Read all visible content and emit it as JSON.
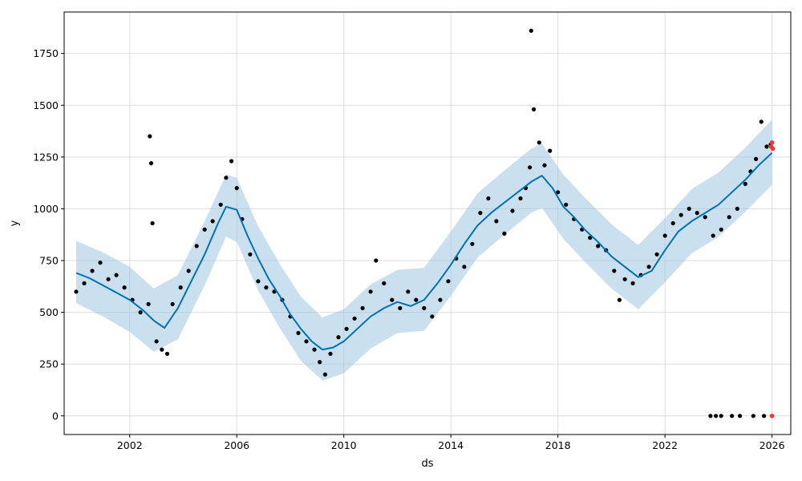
{
  "chart_data": {
    "type": "line",
    "title": "",
    "xlabel": "ds",
    "ylabel": "y",
    "xlim": [
      1999.55,
      2026.7
    ],
    "ylim": [
      -90,
      1950
    ],
    "x_ticks": [
      2002,
      2006,
      2010,
      2014,
      2018,
      2022,
      2026
    ],
    "y_ticks": [
      0,
      250,
      500,
      750,
      1000,
      1250,
      1500,
      1750
    ],
    "grid": true,
    "legend": "none",
    "colors": {
      "forecast": "#0072B2",
      "uncertainty": "#9ec6e2",
      "observed": "#000000",
      "recent": "#ff3333",
      "grid": "#dddddd"
    },
    "series": [
      {
        "role": "forecast",
        "x": [
          2000.0,
          2000.5,
          2001.0,
          2001.5,
          2002.0,
          2002.5,
          2002.9,
          2003.3,
          2003.8,
          2004.3,
          2004.8,
          2005.3,
          2005.6,
          2006.0,
          2006.4,
          2006.8,
          2007.2,
          2007.6,
          2008.0,
          2008.4,
          2008.8,
          2009.2,
          2009.6,
          2010.0,
          2010.5,
          2011.0,
          2011.5,
          2012.0,
          2012.5,
          2013.0,
          2013.5,
          2014.0,
          2014.5,
          2015.0,
          2015.5,
          2016.0,
          2016.5,
          2017.0,
          2017.4,
          2017.8,
          2018.2,
          2018.6,
          2019.0,
          2019.5,
          2020.0,
          2020.5,
          2021.0,
          2021.5,
          2022.0,
          2022.5,
          2023.0,
          2023.5,
          2024.0,
          2024.5,
          2025.0,
          2025.5,
          2026.0
        ],
        "y": [
          690,
          665,
          630,
          595,
          560,
          510,
          460,
          425,
          520,
          650,
          780,
          930,
          1010,
          995,
          870,
          760,
          660,
          580,
          490,
          420,
          360,
          320,
          330,
          360,
          420,
          480,
          520,
          550,
          530,
          560,
          640,
          730,
          830,
          920,
          980,
          1030,
          1080,
          1130,
          1160,
          1100,
          1010,
          960,
          900,
          840,
          770,
          720,
          670,
          700,
          800,
          890,
          940,
          980,
          1020,
          1080,
          1140,
          1210,
          1270
        ]
      },
      {
        "role": "uncertainty",
        "x": [
          2000.0,
          2001.0,
          2002.0,
          2002.9,
          2003.8,
          2004.8,
          2005.6,
          2006.0,
          2006.8,
          2007.6,
          2008.4,
          2009.2,
          2010.0,
          2011.0,
          2012.0,
          2013.0,
          2014.0,
          2015.0,
          2016.0,
          2017.0,
          2017.4,
          2018.2,
          2019.0,
          2020.0,
          2021.0,
          2022.0,
          2023.0,
          2024.0,
          2025.0,
          2026.0
        ],
        "upper": [
          845,
          790,
          720,
          615,
          680,
          940,
          1165,
          1150,
          915,
          735,
          575,
          475,
          515,
          635,
          705,
          715,
          890,
          1075,
          1185,
          1290,
          1315,
          1165,
          1055,
          925,
          825,
          955,
          1095,
          1175,
          1295,
          1430
        ],
        "lower": [
          545,
          480,
          405,
          310,
          370,
          630,
          865,
          840,
          605,
          425,
          265,
          170,
          205,
          325,
          400,
          410,
          580,
          765,
          875,
          980,
          1005,
          855,
          745,
          615,
          515,
          645,
          785,
          865,
          985,
          1115
        ]
      },
      {
        "role": "observed",
        "x": [
          2000.0,
          2000.3,
          2000.6,
          2000.9,
          2001.2,
          2001.5,
          2001.8,
          2002.1,
          2002.4,
          2002.7,
          2002.75,
          2002.8,
          2002.85,
          2003.0,
          2003.2,
          2003.4,
          2003.6,
          2003.9,
          2004.2,
          2004.5,
          2004.8,
          2005.1,
          2005.4,
          2005.6,
          2005.8,
          2006.0,
          2006.2,
          2006.5,
          2006.8,
          2007.1,
          2007.4,
          2007.7,
          2008.0,
          2008.3,
          2008.6,
          2008.9,
          2009.1,
          2009.3,
          2009.5,
          2009.8,
          2010.1,
          2010.4,
          2010.7,
          2011.0,
          2011.2,
          2011.5,
          2011.8,
          2012.1,
          2012.4,
          2012.7,
          2013.0,
          2013.3,
          2013.6,
          2013.9,
          2014.2,
          2014.5,
          2014.8,
          2015.1,
          2015.4,
          2015.7,
          2016.0,
          2016.3,
          2016.6,
          2016.8,
          2016.95,
          2017.0,
          2017.1,
          2017.3,
          2017.5,
          2017.7,
          2018.0,
          2018.3,
          2018.6,
          2018.9,
          2019.2,
          2019.5,
          2019.8,
          2020.1,
          2020.3,
          2020.5,
          2020.8,
          2021.1,
          2021.4,
          2021.7,
          2022.0,
          2022.3,
          2022.6,
          2022.9,
          2023.2,
          2023.5,
          2023.8,
          2024.1,
          2024.4,
          2024.7,
          2025.0,
          2025.2,
          2025.4,
          2025.6,
          2025.8,
          2025.95,
          2023.7,
          2023.9,
          2024.1,
          2024.5,
          2024.8,
          2025.3,
          2025.7
        ],
        "y": [
          600,
          640,
          700,
          740,
          660,
          680,
          620,
          560,
          500,
          540,
          1350,
          1220,
          930,
          360,
          320,
          300,
          540,
          620,
          700,
          820,
          900,
          940,
          1020,
          1150,
          1230,
          1100,
          950,
          780,
          650,
          620,
          600,
          560,
          480,
          400,
          360,
          320,
          260,
          200,
          300,
          380,
          420,
          470,
          520,
          600,
          750,
          640,
          560,
          520,
          600,
          560,
          520,
          480,
          560,
          650,
          760,
          720,
          830,
          980,
          1050,
          940,
          880,
          990,
          1050,
          1100,
          1200,
          1860,
          1480,
          1320,
          1210,
          1280,
          1080,
          1020,
          950,
          900,
          860,
          820,
          800,
          700,
          560,
          660,
          640,
          680,
          720,
          780,
          870,
          930,
          970,
          1000,
          980,
          960,
          870,
          900,
          960,
          1000,
          1120,
          1180,
          1240,
          1420,
          1300,
          1310,
          0,
          0,
          0,
          0,
          0,
          0,
          0
        ]
      },
      {
        "role": "recent",
        "x": [
          2025.97,
          2026.0,
          2026.03,
          2026.0
        ],
        "y": [
          1300,
          1320,
          1290,
          0
        ]
      }
    ]
  }
}
